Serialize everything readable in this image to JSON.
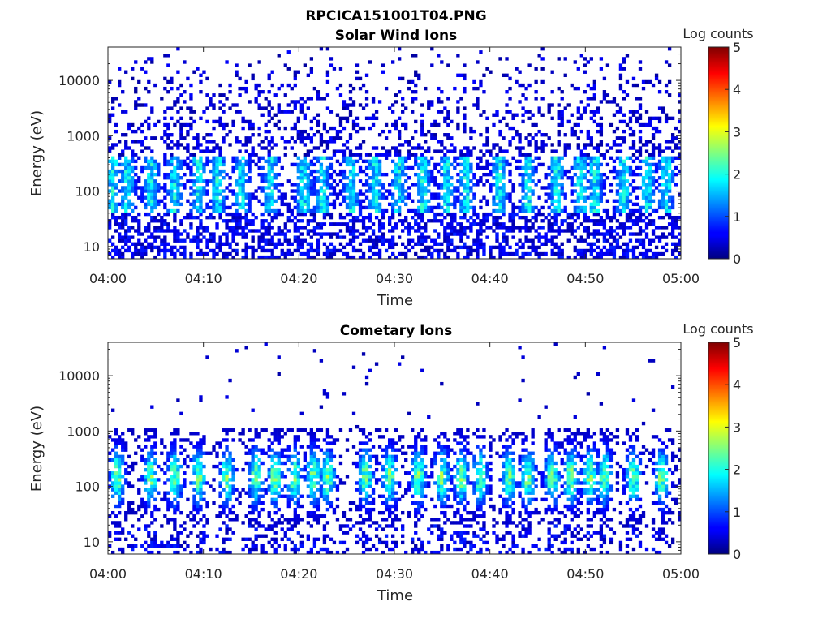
{
  "figure": {
    "title": "RPCICA151001T04.PNG"
  },
  "chart_data": [
    {
      "type": "heatmap",
      "title": "Solar Wind Ions",
      "xlabel": "Time",
      "ylabel": "Energy (eV)",
      "x_range": [
        "04:00",
        "05:00"
      ],
      "x_ticks": [
        "04:00",
        "04:10",
        "04:20",
        "04:30",
        "04:40",
        "04:50",
        "05:00"
      ],
      "y_scale": "log",
      "y_range": [
        6,
        40000
      ],
      "y_ticks": [
        10,
        100,
        1000,
        10000
      ],
      "y_tick_labels": [
        "10",
        "100",
        "1000",
        "10000"
      ],
      "colorbar": {
        "label": "Log counts",
        "range": [
          0,
          5
        ],
        "ticks": [
          "0",
          "1",
          "2",
          "3",
          "4",
          "5"
        ],
        "colormap": "jet"
      },
      "pattern": {
        "low_energy_band_ev": [
          6,
          40
        ],
        "core_energy_ev": [
          40,
          400
        ],
        "core_level": 1.7,
        "background_density": 0.35,
        "bursts_minutes": [
          0.5,
          2,
          4.5,
          7,
          9.5,
          11.5,
          14,
          17,
          20.5,
          22.5,
          25.5,
          28,
          30.5,
          33,
          35.5,
          37.5,
          41,
          44,
          47,
          49.5,
          51,
          54,
          56.5,
          58.5
        ]
      }
    },
    {
      "type": "heatmap",
      "title": "Cometary Ions",
      "xlabel": "Time",
      "ylabel": "Energy (eV)",
      "x_range": [
        "04:00",
        "05:00"
      ],
      "x_ticks": [
        "04:00",
        "04:10",
        "04:20",
        "04:30",
        "04:40",
        "04:50",
        "05:00"
      ],
      "y_scale": "log",
      "y_range": [
        6,
        40000
      ],
      "y_ticks": [
        10,
        100,
        1000,
        10000
      ],
      "y_tick_labels": [
        "10",
        "100",
        "1000",
        "10000"
      ],
      "colorbar": {
        "label": "Log counts",
        "range": [
          0,
          5
        ],
        "ticks": [
          "0",
          "1",
          "2",
          "3",
          "4",
          "5"
        ],
        "colormap": "jet"
      },
      "pattern": {
        "core_energy_ev": [
          20,
          700
        ],
        "core_peak_ev": 150,
        "core_level": 2.4,
        "sparse_high_energy_points": true,
        "bursts_minutes": [
          1,
          4.5,
          7,
          9.5,
          12.5,
          15.5,
          17.5,
          19.5,
          21.5,
          23,
          27,
          29.5,
          32.5,
          35,
          37,
          39,
          42,
          44,
          46.5,
          48.5,
          50.5,
          52,
          55,
          58
        ]
      }
    }
  ]
}
